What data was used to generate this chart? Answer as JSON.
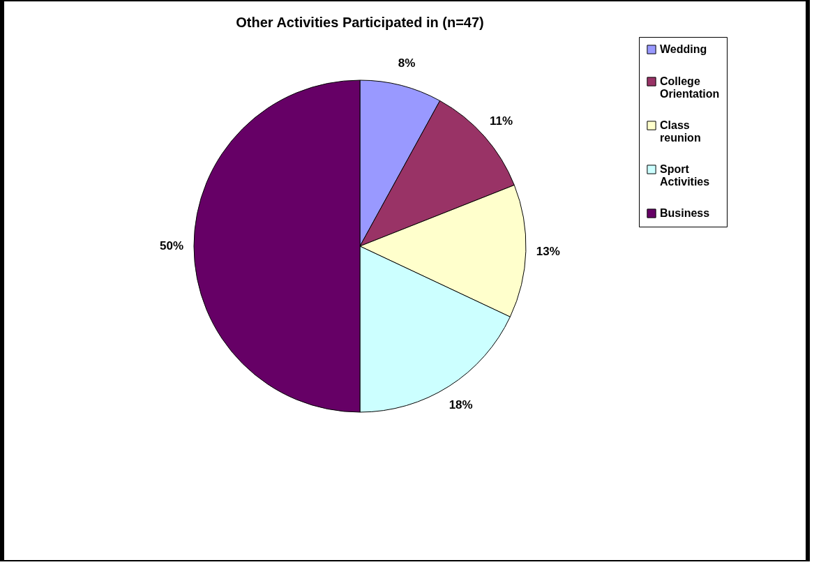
{
  "chart_data": {
    "type": "pie",
    "title": "Other Activities Participated in (n=47)",
    "categories": [
      "Wedding",
      "College Orientation",
      "Class reunion",
      "Sport Activities",
      "Business"
    ],
    "values": [
      8,
      11,
      13,
      18,
      50
    ],
    "colors": [
      "#9999ff",
      "#993366",
      "#ffffcc",
      "#ccffff",
      "#660066"
    ],
    "value_labels": [
      "8%",
      "11%",
      "13%",
      "18%",
      "50%"
    ],
    "legend": "right"
  }
}
